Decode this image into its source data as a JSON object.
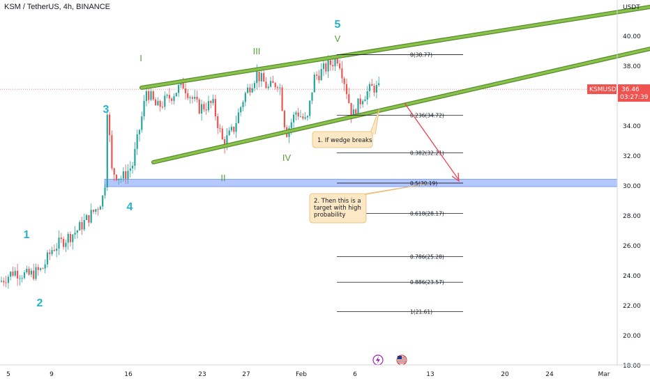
{
  "header": {
    "title": "KSM / TetherUS, 4h, BINANCE"
  },
  "chart_data": {
    "type": "candlestick",
    "symbol": "KSMUSDT",
    "currency_label": "USDT",
    "last_price": "36.46",
    "countdown": "03:27:39",
    "y_ticks": [
      "40.00",
      "38.00",
      "36.00",
      "34.00",
      "32.00",
      "30.00",
      "28.00",
      "26.00",
      "24.00",
      "22.00",
      "20.00",
      "18.00"
    ],
    "x_ticks": [
      "5",
      "9",
      "16",
      "23",
      "27",
      "Feb",
      "6",
      "13",
      "20",
      "24",
      "Mar"
    ],
    "ylim": [
      18,
      41.5
    ],
    "fib_levels": [
      {
        "label": "0(38.77)",
        "value": 38.77
      },
      {
        "label": "0.236(34.72)",
        "value": 34.72
      },
      {
        "label": "0.382(32.21)",
        "value": 32.21
      },
      {
        "label": "0.5(30.19)",
        "value": 30.19
      },
      {
        "label": "0.618(28.17)",
        "value": 28.17
      },
      {
        "label": "0.786(25.28)",
        "value": 25.28
      },
      {
        "label": "0.886(23.57)",
        "value": 23.57
      },
      {
        "label": "1(21.61)",
        "value": 21.61
      }
    ],
    "target_zone": [
      29.95,
      30.45
    ],
    "wave_labels_primary": [
      "1",
      "2",
      "3",
      "4",
      "5"
    ],
    "wave_labels_secondary": [
      "I",
      "II",
      "III",
      "IV",
      "V"
    ],
    "annotations": [
      {
        "id": "note1",
        "text": [
          "1. If wedge breaks"
        ]
      },
      {
        "id": "note2",
        "text": [
          "2. Then this is a",
          "target with high",
          "probability"
        ]
      }
    ],
    "colors": {
      "up": "#26a69a",
      "down": "#ef5350",
      "wedge": "#8bc34a",
      "zone": "#2962ff",
      "arrow": "#f23645",
      "wave_blue": "#26b3c8",
      "wave_green": "#5a9a3a",
      "note_bg": "#fde8c5",
      "note_border": "#e6b96e"
    }
  },
  "footer": {
    "icons": [
      "lightning-icon",
      "us-flag-icon"
    ]
  }
}
